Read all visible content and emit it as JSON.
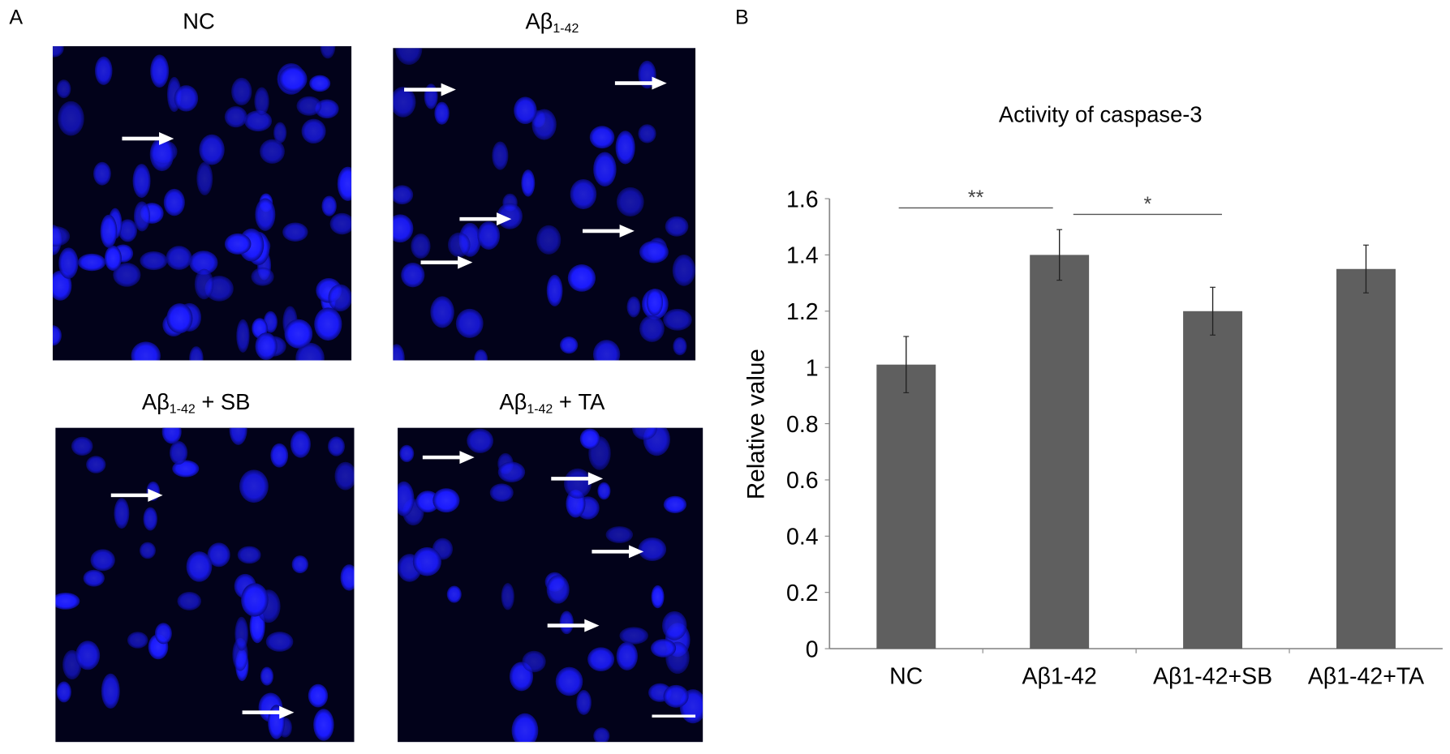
{
  "panel_labels": {
    "a": "A",
    "b": "B"
  },
  "panel_a": {
    "images": [
      {
        "title_main": "NC",
        "title_sub": "",
        "title_suffix": ""
      },
      {
        "title_main": "Aβ",
        "title_sub": "1-42",
        "title_suffix": ""
      },
      {
        "title_main": "Aβ",
        "title_sub": "1-42",
        "title_suffix": " + SB"
      },
      {
        "title_main": "Aβ",
        "title_sub": "1-42",
        "title_suffix": " + TA"
      }
    ],
    "colors": {
      "background": "#02021a",
      "nuclei": "#1a1aff",
      "arrows": "#ffffff"
    }
  },
  "chart_data": {
    "type": "bar",
    "title": "Activity of caspase-3",
    "ylabel": "Relative value",
    "xlabel": "",
    "categories": [
      "NC",
      "Aβ1-42",
      "Aβ1-42+SB",
      "Aβ1-42+TA"
    ],
    "values": [
      1.01,
      1.4,
      1.2,
      1.35
    ],
    "errors": [
      0.1,
      0.09,
      0.085,
      0.085
    ],
    "ylim": [
      0,
      1.6
    ],
    "yticks": [
      "0",
      "0.2",
      "0.4",
      "0.6",
      "0.8",
      "1",
      "1.2",
      "1.4",
      "1.6"
    ],
    "grid": false,
    "bar_color": "#5f5f5f",
    "significance": [
      {
        "from": "NC",
        "to": "Aβ1-42",
        "label": "**"
      },
      {
        "from": "Aβ1-42",
        "to": "Aβ1-42+SB",
        "label": "*"
      }
    ]
  }
}
